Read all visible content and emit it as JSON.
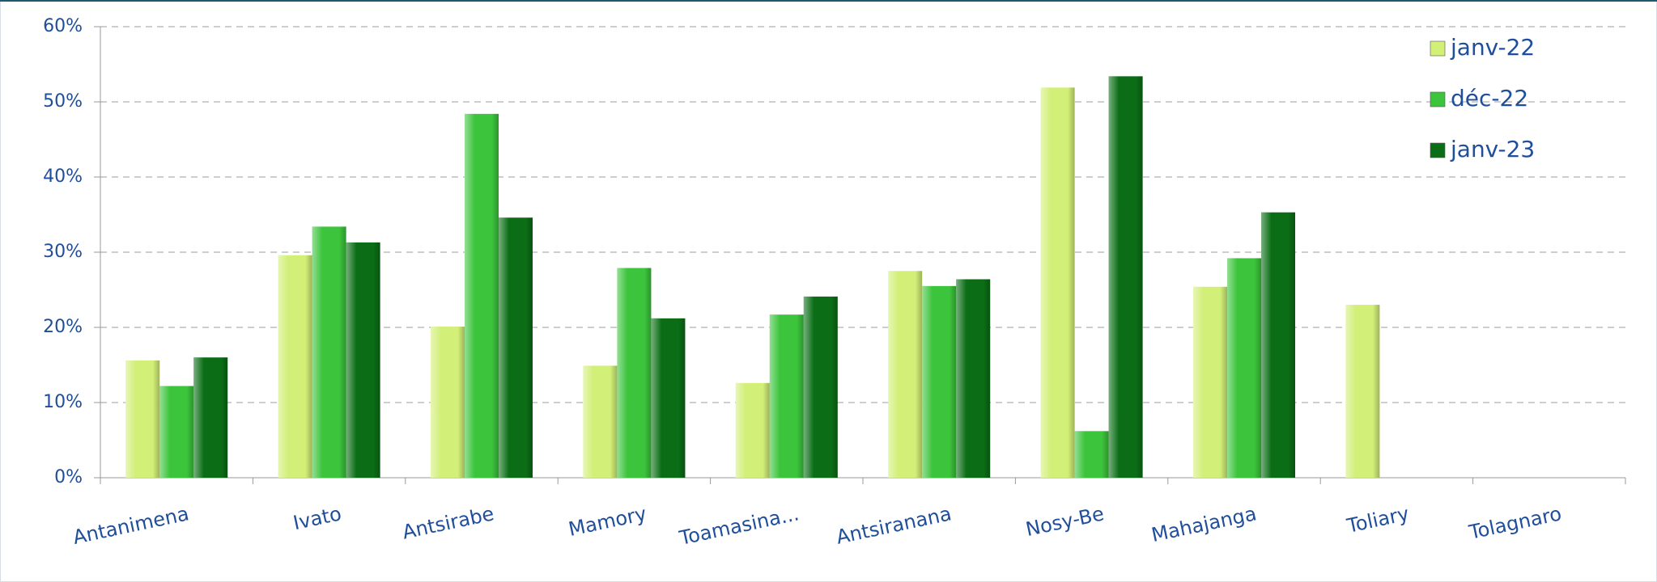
{
  "chart_data": {
    "type": "bar",
    "categories": [
      "Antanimena",
      "Ivato",
      "Antsirabe",
      "Mamory",
      "Toamasina...",
      "Antsiranana",
      "Nosy-Be",
      "Mahajanga",
      "Toliary",
      "Tolagnaro"
    ],
    "series": [
      {
        "name": "janv-22",
        "color": "#d2ef78",
        "values": [
          15.6,
          29.6,
          20.1,
          14.9,
          12.6,
          27.5,
          51.9,
          25.4,
          23.0,
          null
        ]
      },
      {
        "name": "déc-22",
        "color": "#3cc43c",
        "values": [
          12.2,
          33.4,
          48.4,
          27.9,
          21.7,
          25.5,
          6.2,
          29.2,
          null,
          null
        ]
      },
      {
        "name": "janv-23",
        "color": "#0b6e16",
        "values": [
          16.0,
          31.3,
          34.6,
          21.2,
          24.1,
          26.4,
          53.4,
          35.3,
          null,
          null
        ]
      }
    ],
    "ylim": [
      0,
      60
    ],
    "yticks": [
      {
        "value": 0,
        "label": "0%"
      },
      {
        "value": 10,
        "label": "10%"
      },
      {
        "value": 20,
        "label": "20%"
      },
      {
        "value": 30,
        "label": "30%"
      },
      {
        "value": 40,
        "label": "40%"
      },
      {
        "value": 50,
        "label": "50%"
      },
      {
        "value": 60,
        "label": "60%"
      }
    ],
    "grid": true,
    "legend": "top-right"
  }
}
